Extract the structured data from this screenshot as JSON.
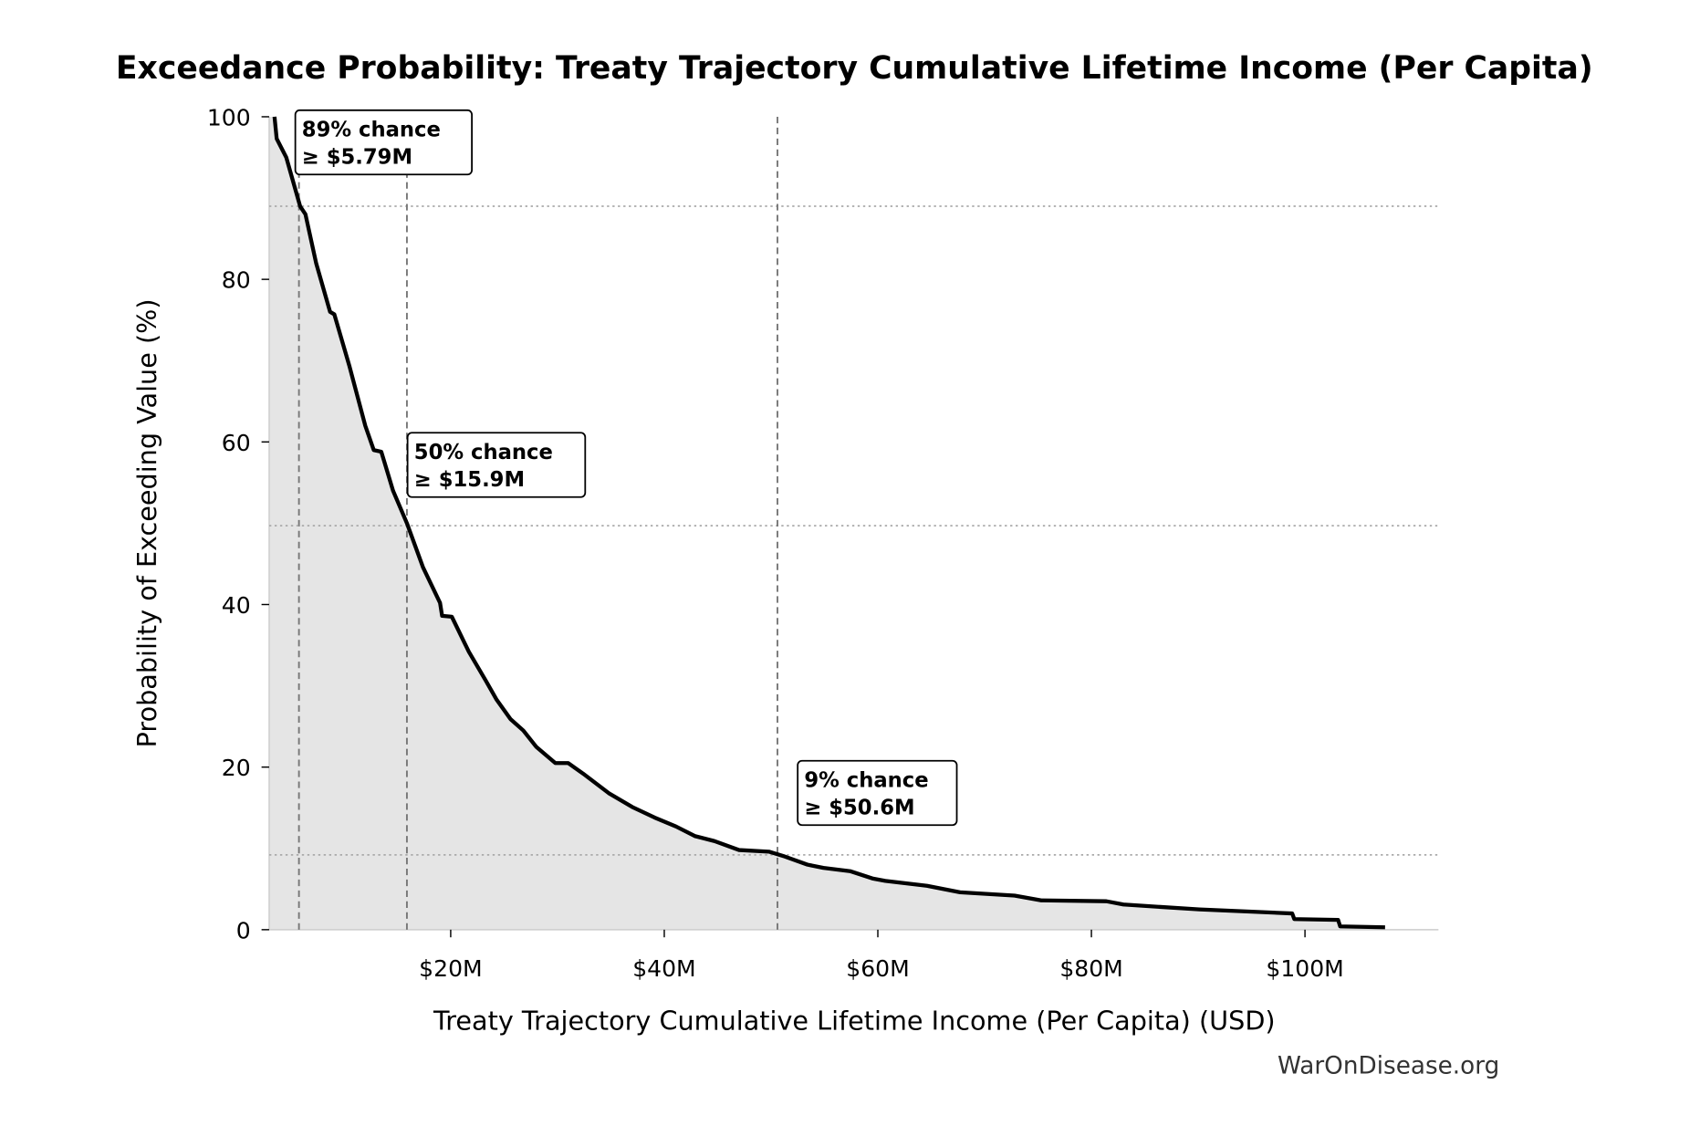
{
  "chart_data": {
    "type": "area",
    "title": "Exceedance Probability: Treaty Trajectory Cumulative Lifetime Income (Per Capita)",
    "xlabel": "Treaty Trajectory Cumulative Lifetime Income (Per Capita) (USD)",
    "ylabel": "Probability of Exceeding Value (%)",
    "xlim": [
      3.0,
      112.5
    ],
    "ylim": [
      0,
      100
    ],
    "x_unit": "million USD",
    "xticks": [
      20,
      40,
      60,
      80,
      100
    ],
    "xtick_labels": [
      "$20M",
      "$40M",
      "$60M",
      "$80M",
      "$100M"
    ],
    "yticks": [
      0,
      20,
      40,
      60,
      80,
      100
    ],
    "ytick_labels": [
      "0",
      "20",
      "40",
      "60",
      "80",
      "100"
    ],
    "grid": false,
    "line_color": "#000000",
    "fill_color": "#e5e5e5",
    "series": [
      {
        "x": [
          3.5,
          3.7,
          4.6,
          5.9,
          6.4,
          7.4,
          8.7,
          9.1,
          10.5,
          12.0,
          12.8,
          13.5,
          14.6,
          15.9,
          17.4,
          19.0,
          19.2,
          20.1,
          21.7,
          23.3,
          24.3,
          25.6,
          26.8,
          28.0,
          29.8,
          31.0,
          32.4,
          34.8,
          37.0,
          39.1,
          41.1,
          42.9,
          44.7,
          47.0,
          49.8,
          51.3,
          53.4,
          54.9,
          57.4,
          59.5,
          60.7,
          64.6,
          67.7,
          72.8,
          75.3,
          81.4,
          83.0,
          90.1,
          98.8,
          99.0,
          103.1,
          103.3,
          107.5
        ],
        "y": [
          100,
          97.3,
          95,
          89,
          88,
          82,
          76,
          75.7,
          69.4,
          62,
          59,
          58.8,
          54,
          50,
          44.6,
          40.2,
          38.6,
          38.5,
          34.2,
          30.6,
          28.3,
          25.9,
          24.5,
          22.5,
          20.5,
          20.5,
          19.2,
          16.8,
          15.1,
          13.8,
          12.7,
          11.5,
          10.9,
          9.8,
          9.6,
          9.0,
          8.0,
          7.6,
          7.2,
          6.3,
          6.0,
          5.4,
          4.6,
          4.2,
          3.6,
          3.5,
          3.1,
          2.5,
          2.0,
          1.3,
          1.2,
          0.4,
          0.3
        ]
      }
    ],
    "reference_lines": [
      {
        "x": 5.79,
        "y": 89,
        "label_line1": "89% chance",
        "label_line2": "≥ $5.79M"
      },
      {
        "x": 15.9,
        "y": 49.7,
        "label_line1": "50% chance",
        "label_line2": "≥ $15.9M"
      },
      {
        "x": 50.6,
        "y": 9.2,
        "label_line1": "9% chance",
        "label_line2": "≥ $50.6M"
      }
    ]
  },
  "watermark": "WarOnDisease.org"
}
